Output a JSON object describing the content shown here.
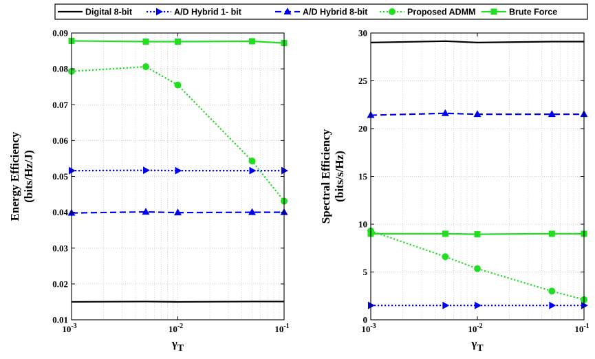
{
  "legend": [
    {
      "name": "Digital 8-bit",
      "color": "#000000",
      "dash": "solid",
      "marker": "none"
    },
    {
      "name": "A/D Hybrid 1- bit",
      "color": "#0000ee",
      "dash": "dotted",
      "marker": "triangle-right"
    },
    {
      "name": "A/D Hybrid 8-bit",
      "color": "#0000ee",
      "dash": "dashed",
      "marker": "triangle-up"
    },
    {
      "name": "Proposed ADMM",
      "color": "#22dd22",
      "dash": "dotted",
      "marker": "circle"
    },
    {
      "name": "Brute Force",
      "color": "#22dd22",
      "dash": "solid",
      "marker": "square"
    }
  ],
  "chart_data": [
    {
      "type": "line",
      "xlabel_main": "γ",
      "xlabel_sub": "T",
      "ylabel_line1": "Energy Efficiency",
      "ylabel_line2": "(bits/Hz/J)",
      "xscale": "log",
      "xlim": [
        0.001,
        0.1
      ],
      "ylim": [
        0.01,
        0.09
      ],
      "xticks": [
        0.001,
        0.01,
        0.1
      ],
      "xtick_labels": [
        {
          "base": "10",
          "exp": "-3"
        },
        {
          "base": "10",
          "exp": "-2"
        },
        {
          "base": "10",
          "exp": "-1"
        }
      ],
      "yticks": [
        0.01,
        0.02,
        0.03,
        0.04,
        0.05,
        0.06,
        0.07,
        0.08,
        0.09
      ],
      "ytick_labels": [
        "0.01",
        "0.02",
        "0.03",
        "0.04",
        "0.05",
        "0.06",
        "0.07",
        "0.08",
        "0.09"
      ],
      "grid": true,
      "x": [
        0.001,
        0.005,
        0.01,
        0.05,
        0.1
      ],
      "series": [
        {
          "name": "Digital 8-bit",
          "values": [
            0.015,
            0.0151,
            0.015,
            0.0151,
            0.0151
          ]
        },
        {
          "name": "A/D Hybrid 1- bit",
          "values": [
            0.0516,
            0.0517,
            0.0516,
            0.0516,
            0.0516
          ]
        },
        {
          "name": "A/D Hybrid 8-bit",
          "values": [
            0.0398,
            0.0401,
            0.0399,
            0.04,
            0.04
          ]
        },
        {
          "name": "Proposed ADMM",
          "values": [
            0.0793,
            0.0806,
            0.0755,
            0.0543,
            0.0431
          ]
        },
        {
          "name": "Brute Force",
          "values": [
            0.0878,
            0.0876,
            0.0876,
            0.0877,
            0.0872
          ]
        }
      ]
    },
    {
      "type": "line",
      "xlabel_main": "γ",
      "xlabel_sub": "T",
      "ylabel_line1": "Spectral Efficiency",
      "ylabel_line2": "(bits/s/Hz)",
      "xscale": "log",
      "xlim": [
        0.001,
        0.1
      ],
      "ylim": [
        0,
        30
      ],
      "xticks": [
        0.001,
        0.01,
        0.1
      ],
      "xtick_labels": [
        {
          "base": "10",
          "exp": "-3"
        },
        {
          "base": "10",
          "exp": "-2"
        },
        {
          "base": "10",
          "exp": "-1"
        }
      ],
      "yticks": [
        0,
        5,
        10,
        15,
        20,
        25,
        30
      ],
      "ytick_labels": [
        "0",
        "5",
        "10",
        "15",
        "20",
        "25",
        "30"
      ],
      "grid": true,
      "x": [
        0.001,
        0.005,
        0.01,
        0.05,
        0.1
      ],
      "series": [
        {
          "name": "Digital 8-bit",
          "values": [
            29.0,
            29.15,
            29.0,
            29.1,
            29.1
          ]
        },
        {
          "name": "A/D Hybrid 1- bit",
          "values": [
            1.5,
            1.5,
            1.5,
            1.5,
            1.5
          ]
        },
        {
          "name": "A/D Hybrid 8-bit",
          "values": [
            21.4,
            21.6,
            21.5,
            21.5,
            21.5
          ]
        },
        {
          "name": "Proposed ADMM",
          "values": [
            9.3,
            6.6,
            5.35,
            3.0,
            2.1
          ]
        },
        {
          "name": "Brute Force",
          "values": [
            9.0,
            9.0,
            8.95,
            9.0,
            9.0
          ]
        }
      ]
    }
  ]
}
